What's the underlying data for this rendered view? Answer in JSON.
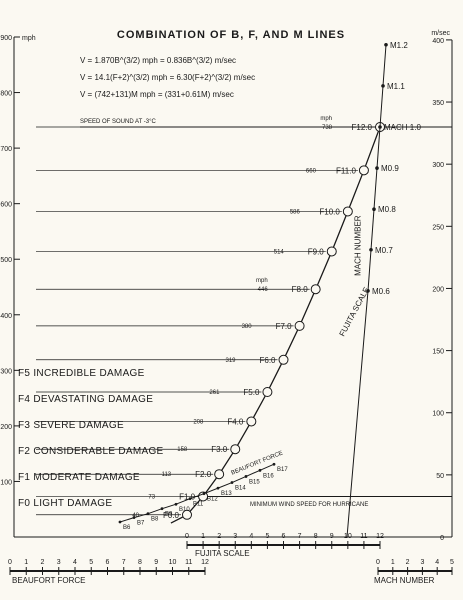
{
  "chart_data": {
    "type": "line",
    "title": "COMBINATION OF B, F, AND M LINES",
    "formulas": [
      "V = 1.870B^(3/2) mph = 0.836B^(3/2) m/sec",
      "V = 14.1(F+2)^(3/2) mph = 6.30(F+2)^(3/2) m/sec",
      "V = (742+131)M mph = (331+0.61M) m/sec"
    ],
    "left_axis": {
      "unit": "mph",
      "ylim": [
        0,
        900
      ],
      "ticks": [
        100,
        200,
        300,
        400,
        500,
        600,
        700,
        800,
        900
      ]
    },
    "right_axis": {
      "unit": "m/sec",
      "ylim": [
        0,
        400
      ],
      "ticks": [
        0,
        50,
        100,
        150,
        200,
        250,
        300,
        350,
        400
      ]
    },
    "speed_of_sound": {
      "label": "SPEED OF SOUND AT -3°C",
      "value_mph": 738
    },
    "hurricane_label": "MINIMUM WIND SPEED FOR HURRICANE",
    "hurricane_mph": 73,
    "fujita_scale": {
      "name": "FUJITA SCALE",
      "axis_label": "FUJITA SCALE",
      "axis_ticks": [
        "0",
        "1",
        "2",
        "3",
        "4",
        "5",
        "6",
        "7",
        "8",
        "9",
        "10",
        "11",
        "12"
      ],
      "points": [
        {
          "label": "F0.0",
          "f": 0,
          "mph": 40,
          "mph_label": "40"
        },
        {
          "label": "F1.0",
          "f": 1,
          "mph": 73,
          "mph_label": "73"
        },
        {
          "label": "F2.0",
          "f": 2,
          "mph": 113,
          "mph_label": "113"
        },
        {
          "label": "F3.0",
          "f": 3,
          "mph": 158,
          "mph_label": "158"
        },
        {
          "label": "F4.0",
          "f": 4,
          "mph": 208,
          "mph_label": "208"
        },
        {
          "label": "F5.0",
          "f": 5,
          "mph": 261,
          "mph_label": "261"
        },
        {
          "label": "F6.0",
          "f": 6,
          "mph": 319,
          "mph_label": "319"
        },
        {
          "label": "F7.0",
          "f": 7,
          "mph": 380,
          "mph_label": "380"
        },
        {
          "label": "F8.0",
          "f": 8,
          "mph": 446,
          "mph_label": "446",
          "unit_label": "mph"
        },
        {
          "label": "F9.0",
          "f": 9,
          "mph": 514,
          "mph_label": "514"
        },
        {
          "label": "F10.0",
          "f": 10,
          "mph": 586,
          "mph_label": "586"
        },
        {
          "label": "F11.0",
          "f": 11,
          "mph": 660,
          "mph_label": "660"
        },
        {
          "label": "F12.0",
          "f": 12,
          "mph": 738,
          "mph_label": "738",
          "unit_label": "mph"
        }
      ]
    },
    "beaufort_force": {
      "name": "BEAUFORT FORCE",
      "axis_label": "BEAUFORT FORCE",
      "axis_ticks": [
        "0",
        "1",
        "2",
        "3",
        "4",
        "5",
        "6",
        "7",
        "8",
        "9",
        "10",
        "11",
        "12"
      ],
      "points": [
        {
          "label": "B6",
          "b": 6,
          "mph": 27
        },
        {
          "label": "B7",
          "b": 7,
          "mph": 35
        },
        {
          "label": "B8",
          "b": 8,
          "mph": 42
        },
        {
          "label": "B9",
          "b": 9,
          "mph": 51
        },
        {
          "label": "B10",
          "b": 10,
          "mph": 59
        },
        {
          "label": "B11",
          "b": 11,
          "mph": 69
        },
        {
          "label": "B12",
          "b": 12,
          "mph": 78
        },
        {
          "label": "B13",
          "b": 13,
          "mph": 88
        },
        {
          "label": "B14",
          "b": 14,
          "mph": 98
        },
        {
          "label": "B15",
          "b": 15,
          "mph": 109
        },
        {
          "label": "B16",
          "b": 16,
          "mph": 120
        },
        {
          "label": "B17",
          "b": 17,
          "mph": 131
        }
      ]
    },
    "mach_number": {
      "name": "MACH NUMBER",
      "axis_label": "MACH NUMBER",
      "axis_ticks": [
        "0",
        "1",
        "2",
        "3",
        "4",
        "5"
      ],
      "points": [
        {
          "label": "M0.6",
          "m": 0.6,
          "mph": 443
        },
        {
          "label": "M0.7",
          "m": 0.7,
          "mph": 517
        },
        {
          "label": "M0.8",
          "m": 0.8,
          "mph": 590
        },
        {
          "label": "M0.9",
          "m": 0.9,
          "mph": 664
        },
        {
          "label": "MACH 1.0",
          "m": 1.0,
          "mph": 738
        },
        {
          "label": "M1.1",
          "m": 1.1,
          "mph": 812
        },
        {
          "label": "M1.2",
          "m": 1.2,
          "mph": 886
        }
      ]
    },
    "damage_categories": [
      {
        "label": "F5 INCREDIBLE DAMAGE"
      },
      {
        "label": "F4 DEVASTATING DAMAGE"
      },
      {
        "label": "F3 SEVERE DAMAGE"
      },
      {
        "label": "F2 CONSIDERABLE DAMAGE"
      },
      {
        "label": "F1 MODERATE DAMAGE"
      },
      {
        "label": "F0 LIGHT DAMAGE"
      }
    ]
  }
}
